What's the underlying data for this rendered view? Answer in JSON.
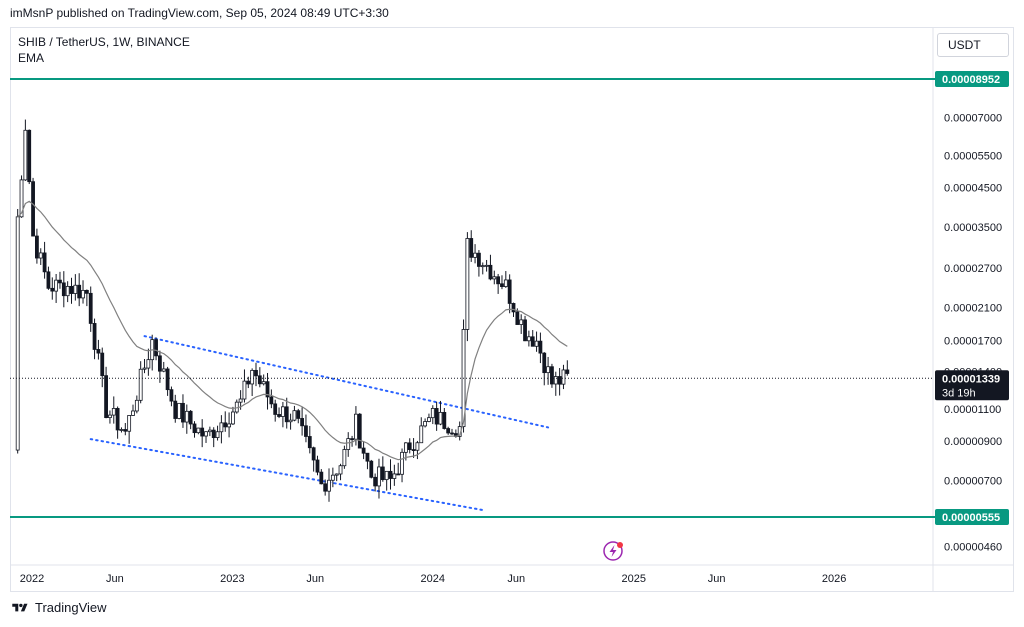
{
  "header": {
    "publish_line": "imMsnP published on TradingView.com, Sep 05, 2024 08:49 UTC+3:30"
  },
  "legend": {
    "symbol_line": "SHIB / TetherUS, 1W, BINANCE",
    "indicator": "EMA"
  },
  "currency_button": "USDT",
  "footer": {
    "brand": "TradingView"
  },
  "colors": {
    "up": "#131722",
    "down": "#131722",
    "ema": "#808080",
    "channel": "#2962ff",
    "level": "#089981",
    "grid_text": "#131722"
  },
  "chart_data": {
    "type": "candlestick",
    "symbol": "SHIB / TetherUS",
    "interval": "1W",
    "exchange": "BINANCE",
    "y_scale": "log",
    "y_range": [
      4e-06,
      9.3e-06
    ],
    "x_range": [
      "2021-11-22",
      "2026-06-30"
    ],
    "y_ticks": [
      "0.00007000",
      "0.00005500",
      "0.00004500",
      "0.00003500",
      "0.00002700",
      "0.00002100",
      "0.00001700",
      "0.00001400",
      "0.00001100",
      "0.00000900",
      "0.00000700",
      "0.00000460"
    ],
    "x_ticks": [
      "2022",
      "Jun",
      "2023",
      "Jun",
      "2024",
      "Jun",
      "2025",
      "Jun",
      "2026"
    ],
    "horizontal_levels": [
      {
        "label": "0.00008952",
        "value": 8.952e-05
      },
      {
        "label": "0.00000555",
        "value": 5.55e-06
      }
    ],
    "current_price": {
      "label": "0.00001339",
      "value": 1.339e-05,
      "countdown": "3d 19h"
    },
    "channel": {
      "upper": [
        {
          "date": "2022-07-25",
          "value": 1.75e-05
        },
        {
          "date": "2024-07-29",
          "value": 9.8e-06
        }
      ],
      "lower": [
        {
          "date": "2022-04-18",
          "value": 9.1e-06
        },
        {
          "date": "2024-04-01",
          "value": 5.8e-06
        }
      ]
    },
    "ohlc_anchors": [
      {
        "date": "2021-11-29",
        "close": 8.5e-06
      },
      {
        "date": "2021-12-06",
        "close": 3.7e-05
      },
      {
        "date": "2021-12-20",
        "close": 6.7e-05
      },
      {
        "date": "2022-01-03",
        "close": 3.3e-05
      },
      {
        "date": "2022-01-31",
        "close": 2.4e-05
      },
      {
        "date": "2022-03-07",
        "close": 2.4e-05
      },
      {
        "date": "2022-04-11",
        "close": 2.3e-05
      },
      {
        "date": "2022-05-16",
        "close": 1.1e-05
      },
      {
        "date": "2022-06-20",
        "close": 9.5e-06
      },
      {
        "date": "2022-08-08",
        "close": 1.7e-05
      },
      {
        "date": "2022-09-19",
        "close": 1.1e-05
      },
      {
        "date": "2022-11-14",
        "close": 9.2e-06
      },
      {
        "date": "2023-01-16",
        "close": 1.15e-05
      },
      {
        "date": "2023-02-06",
        "close": 1.42e-05
      },
      {
        "date": "2023-03-20",
        "close": 1.1e-05
      },
      {
        "date": "2023-04-24",
        "close": 1.05e-05
      },
      {
        "date": "2023-06-12",
        "close": 6.8e-06
      },
      {
        "date": "2023-07-17",
        "close": 7.8e-06
      },
      {
        "date": "2023-08-14",
        "close": 1e-05
      },
      {
        "date": "2023-09-11",
        "close": 7.2e-06
      },
      {
        "date": "2023-10-16",
        "close": 7e-06
      },
      {
        "date": "2023-11-20",
        "close": 8.8e-06
      },
      {
        "date": "2024-01-01",
        "close": 1.05e-05
      },
      {
        "date": "2024-02-19",
        "close": 9.8e-06
      },
      {
        "date": "2024-03-04",
        "close": 3.1e-05
      },
      {
        "date": "2024-03-25",
        "close": 2.9e-05
      },
      {
        "date": "2024-05-13",
        "close": 2.4e-05
      },
      {
        "date": "2024-06-17",
        "close": 1.8e-05
      },
      {
        "date": "2024-07-08",
        "close": 1.7e-05
      },
      {
        "date": "2024-08-05",
        "close": 1.3e-05
      },
      {
        "date": "2024-09-02",
        "close": 1.339e-05
      }
    ]
  }
}
